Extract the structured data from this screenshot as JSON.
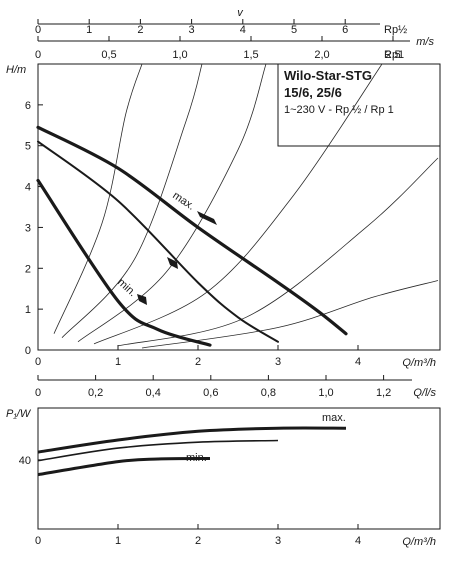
{
  "chart_data": [
    {
      "type": "line",
      "title": "Wilo-Star-STG",
      "subtitle": "15/6, 25/6",
      "subtitle2": "1~230 V - Rp ½ / Rp 1",
      "ylabel": "H/m",
      "xlabel": "Q/m³/h",
      "xlim": [
        0,
        5
      ],
      "ylim": [
        0,
        7
      ],
      "xticks": [
        0,
        1,
        2,
        3,
        4
      ],
      "yticks": [
        0,
        1,
        2,
        3,
        4,
        5,
        6
      ],
      "top_axes": {
        "v_label": "v",
        "v_unit": "m/s",
        "v_rp_half_label": "Rp½",
        "v_rp_half_ticks": [
          "0",
          "1",
          "2",
          "3",
          "4",
          "5",
          "6"
        ],
        "v_rp1_label": "Rp1",
        "v_rp1_ticks": [
          "0",
          "0,5",
          "1,0",
          "1,5",
          "2,0",
          "2,5"
        ]
      },
      "bottom_axis": {
        "label": "Q/l/s",
        "ticks": [
          "0",
          "0,2",
          "0,4",
          "0,6",
          "0,8",
          "1,0",
          "1,2"
        ]
      },
      "series": [
        {
          "name": "max.",
          "x": [
            0,
            1,
            2,
            3,
            3.5,
            3.85
          ],
          "y": [
            5.45,
            4.45,
            3.0,
            1.65,
            0.95,
            0.4
          ]
        },
        {
          "name": "",
          "x": [
            0,
            1,
            2,
            2.5,
            3.0
          ],
          "y": [
            5.1,
            3.65,
            1.65,
            0.8,
            0.2
          ]
        },
        {
          "name": "min.",
          "x": [
            0,
            1,
            1.5,
            2.15
          ],
          "y": [
            4.15,
            1.2,
            0.5,
            0.12
          ]
        }
      ],
      "system_curves": [
        {
          "points": [
            [
              0.2,
              0.4
            ],
            [
              0.8,
              3.1
            ],
            [
              1.1,
              5.8
            ],
            [
              1.3,
              7.0
            ]
          ]
        },
        {
          "points": [
            [
              0.3,
              0.3
            ],
            [
              1.2,
              2.2
            ],
            [
              1.85,
              5.6
            ],
            [
              2.05,
              7.0
            ]
          ]
        },
        {
          "points": [
            [
              0.5,
              0.2
            ],
            [
              1.6,
              1.9
            ],
            [
              2.5,
              4.9
            ],
            [
              2.85,
              7.0
            ]
          ]
        },
        {
          "points": [
            [
              0.7,
              0.15
            ],
            [
              2.1,
              1.4
            ],
            [
              3.2,
              3.8
            ],
            [
              4.3,
              7.0
            ]
          ]
        },
        {
          "points": [
            [
              1.0,
              0.1
            ],
            [
              2.6,
              0.8
            ],
            [
              4.1,
              3.0
            ],
            [
              5.0,
              4.7
            ]
          ]
        },
        {
          "points": [
            [
              1.3,
              0.05
            ],
            [
              3.0,
              0.55
            ],
            [
              4.2,
              1.3
            ],
            [
              5.0,
              1.7
            ]
          ]
        }
      ]
    },
    {
      "type": "line",
      "ylabel": "P₁/W",
      "xlabel": "Q/m³/h",
      "xlim": [
        0,
        5
      ],
      "ylim": [
        0,
        70
      ],
      "xticks": [
        0,
        1,
        2,
        3,
        4
      ],
      "yticks": [
        40
      ],
      "series": [
        {
          "name": "max.",
          "x": [
            0,
            1,
            2,
            3,
            3.85
          ],
          "y": [
            44.5,
            51.5,
            56.5,
            58.3,
            58.3
          ]
        },
        {
          "name": "",
          "x": [
            0,
            1,
            2,
            3.0
          ],
          "y": [
            39.5,
            46.8,
            50.2,
            51.2
          ]
        },
        {
          "name": "min.",
          "x": [
            0,
            1,
            1.5,
            2.15
          ],
          "y": [
            31.5,
            39.0,
            40.5,
            40.8
          ]
        }
      ]
    }
  ]
}
